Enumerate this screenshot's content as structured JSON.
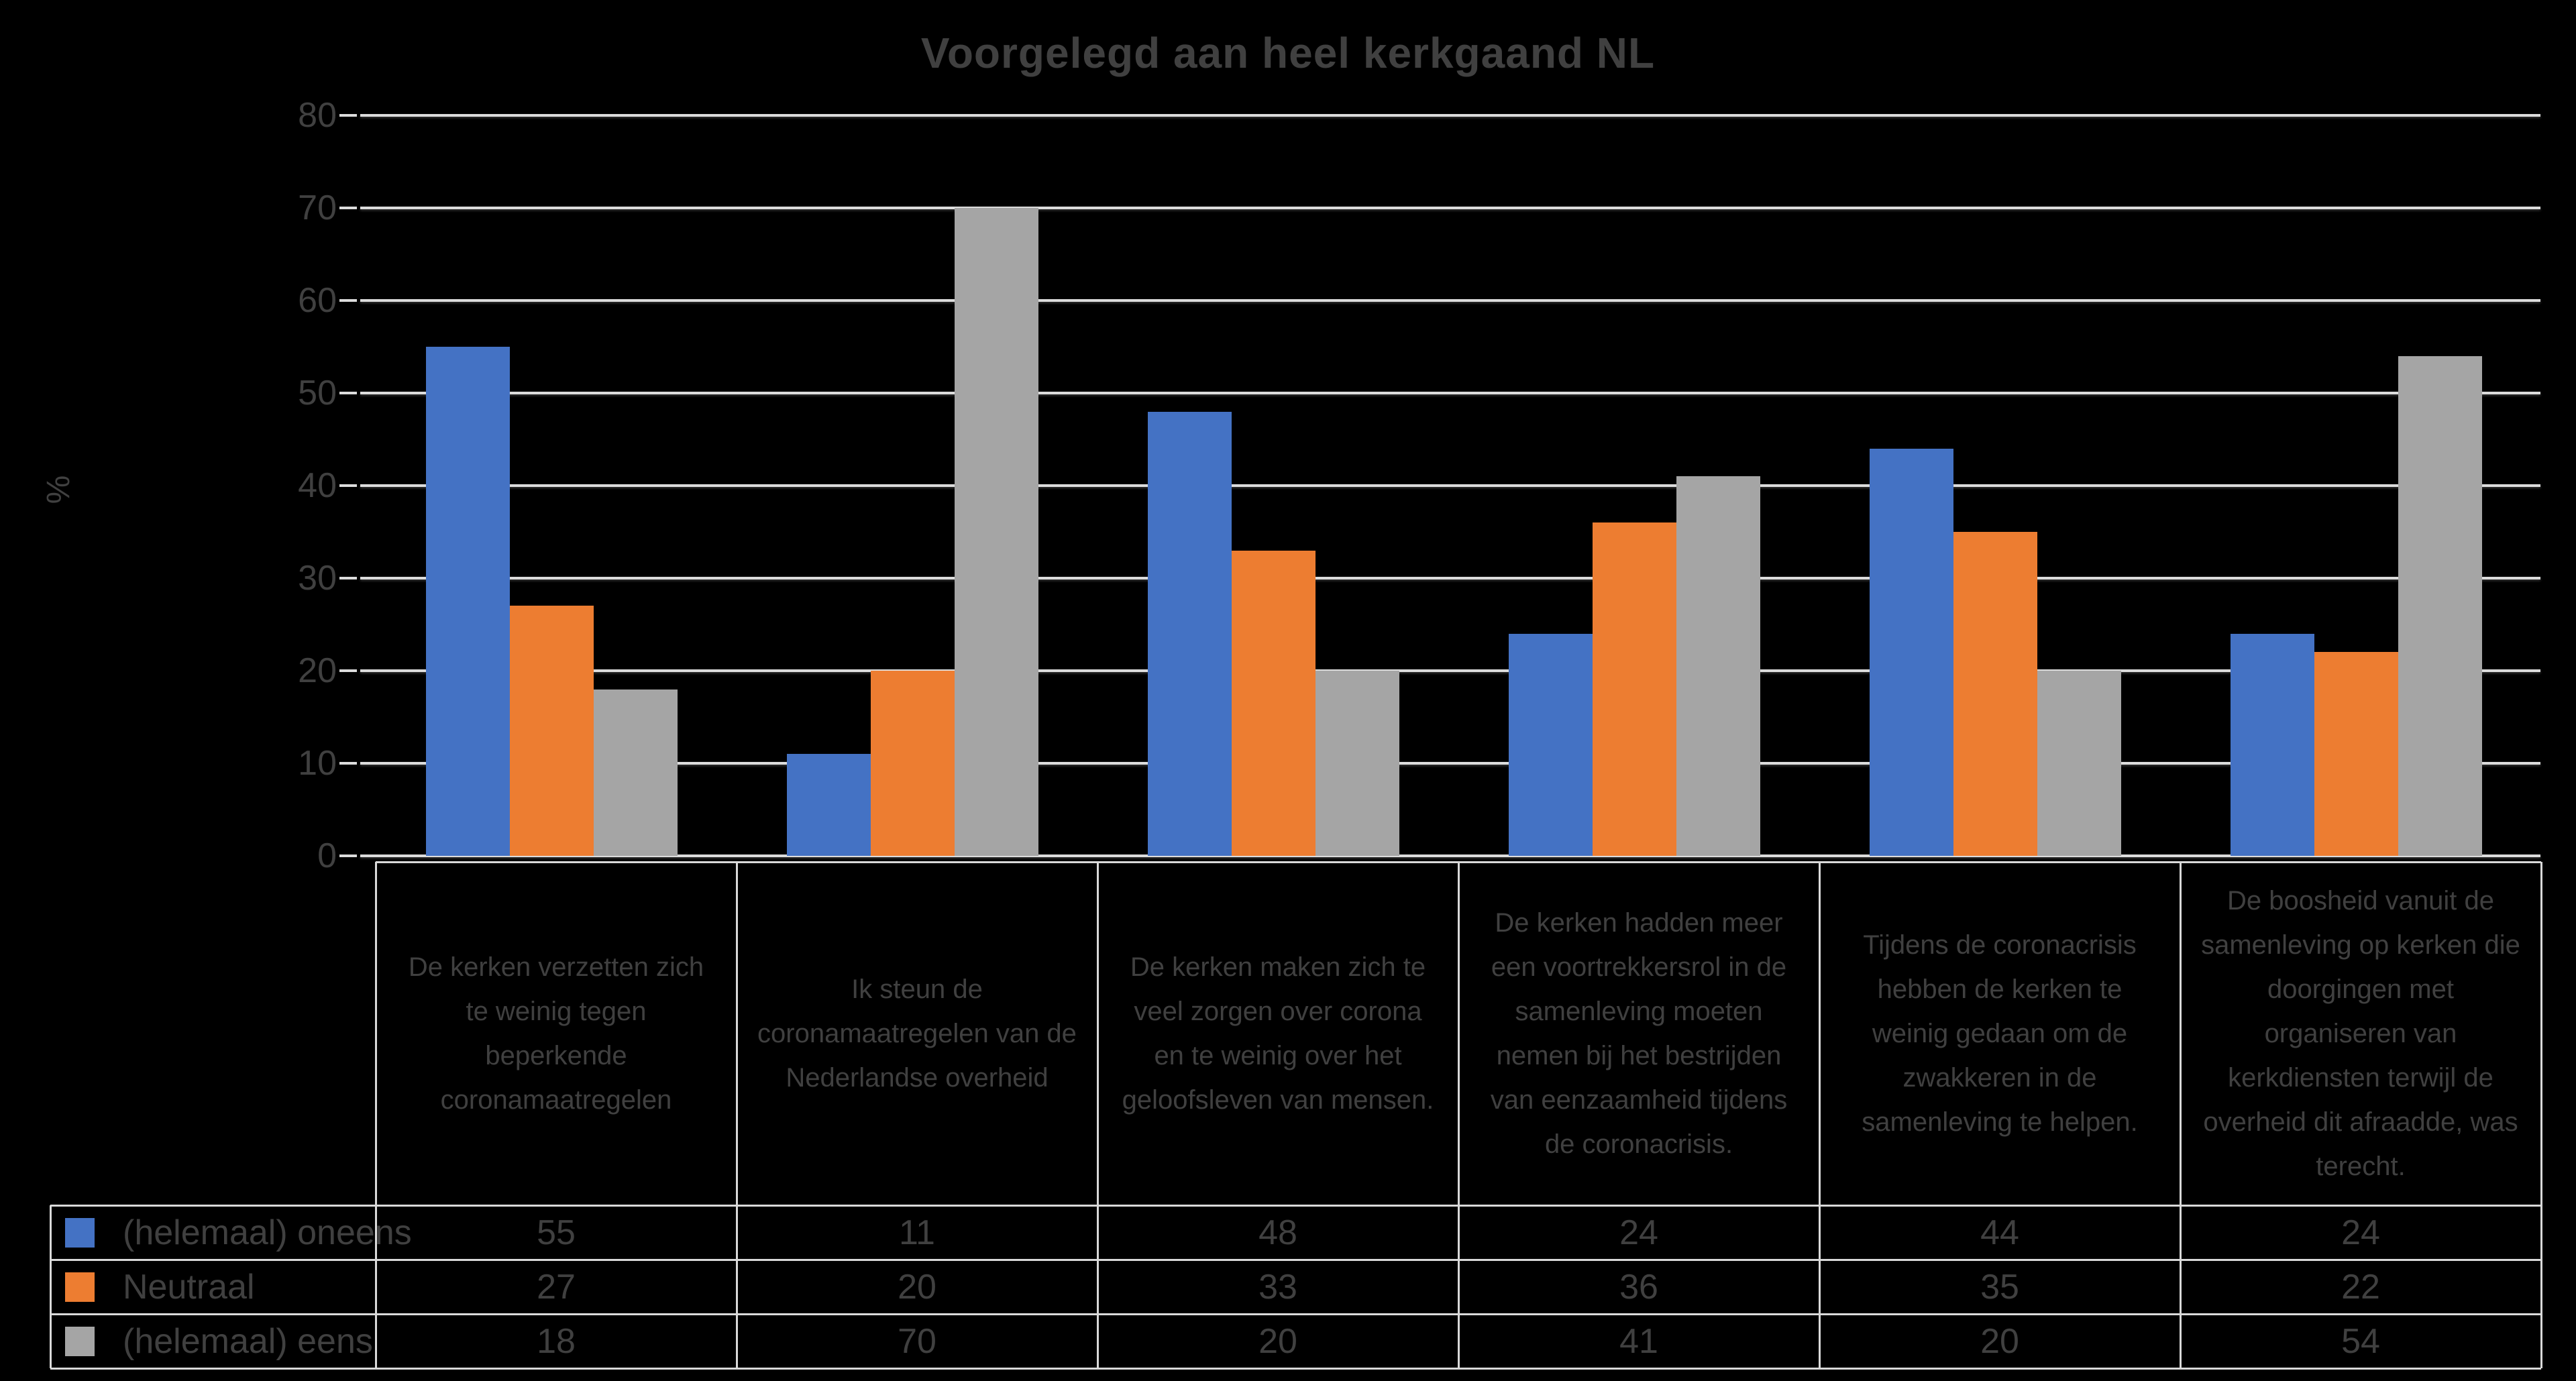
{
  "title": "Voorgelegd aan heel kerkgaand NL",
  "y_axis": {
    "unit_label": "%",
    "ticks": [
      0,
      10,
      20,
      30,
      40,
      50,
      60,
      70,
      80
    ],
    "max": 80
  },
  "chart_data": {
    "type": "bar",
    "title": "Voorgelegd aan heel kerkgaand NL",
    "xlabel": "",
    "ylabel": "%",
    "ylim": [
      0,
      80
    ],
    "grid": true,
    "legend_position": "data-table-left",
    "categories": [
      "De kerken verzetten zich te weinig tegen beperkende coronamaatregelen",
      "Ik steun de coronamaatregelen van de Nederlandse overheid",
      "De kerken maken zich te veel zorgen over corona en te weinig over het geloofsleven van mensen.",
      "De kerken hadden meer een voortrekkersrol in de samenleving moeten nemen bij het bestrijden van eenzaamheid tijdens de coronacrisis.",
      "Tijdens de coronacrisis hebben de kerken te weinig gedaan om de zwakkeren in de samenleving te helpen.",
      "De boosheid vanuit de samenleving op kerken die doorgingen met organiseren van kerkdiensten terwijl de overheid dit afraadde, was terecht."
    ],
    "series": [
      {
        "name": "(helemaal) oneens",
        "color": "#4472C4",
        "values": [
          55,
          11,
          48,
          24,
          44,
          24
        ]
      },
      {
        "name": "Neutraal",
        "color": "#ED7D31",
        "values": [
          27,
          20,
          33,
          36,
          35,
          22
        ]
      },
      {
        "name": "(helemaal) eens",
        "color": "#A5A5A5",
        "values": [
          18,
          70,
          20,
          41,
          20,
          54
        ]
      }
    ],
    "colors": {
      "background": "#000000",
      "gridline": "#dcdcdc",
      "table_border": "#d9d9d9",
      "text": "#404040"
    }
  }
}
